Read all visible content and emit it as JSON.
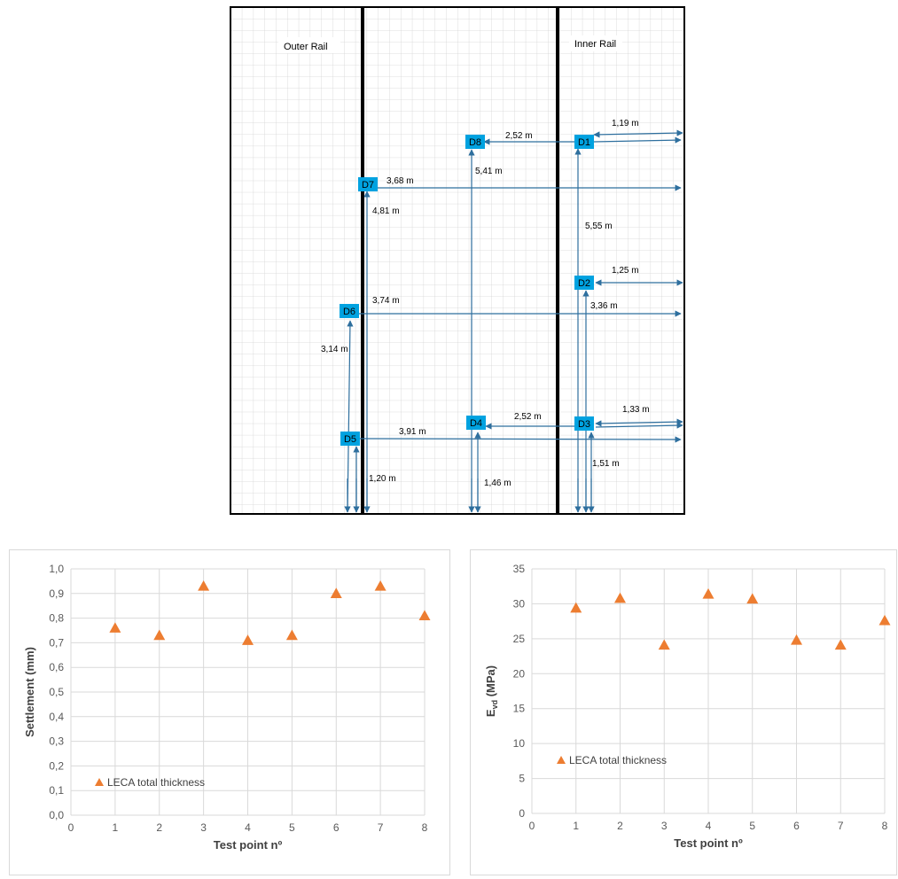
{
  "layout": {
    "rail_labels": {
      "outer": "Outer Rail",
      "inner": "Inner Rail"
    },
    "points": [
      {
        "id": "D1",
        "label": "D1"
      },
      {
        "id": "D2",
        "label": "D2"
      },
      {
        "id": "D3",
        "label": "D3"
      },
      {
        "id": "D4",
        "label": "D4"
      },
      {
        "id": "D5",
        "label": "D5"
      },
      {
        "id": "D6",
        "label": "D6"
      },
      {
        "id": "D7",
        "label": "D7"
      },
      {
        "id": "D8",
        "label": "D8"
      }
    ],
    "dimensions": [
      {
        "id": "d1-edge",
        "label": "1,19 m"
      },
      {
        "id": "d1-d8",
        "label": "2,52 m"
      },
      {
        "id": "d8-vertical",
        "label": "5,41 m"
      },
      {
        "id": "d7-horizontal",
        "label": "3,68 m"
      },
      {
        "id": "d7-vertical",
        "label": "4,81 m"
      },
      {
        "id": "d1-vertical",
        "label": "5,55 m"
      },
      {
        "id": "d2-edge",
        "label": "1,25 m"
      },
      {
        "id": "d6-horizontal",
        "label": "3,74 m"
      },
      {
        "id": "d2-vertical",
        "label": "3,36 m"
      },
      {
        "id": "d6-vertical",
        "label": "3,14 m"
      },
      {
        "id": "d3-edge",
        "label": "1,33 m"
      },
      {
        "id": "d3-d4",
        "label": "2,52 m"
      },
      {
        "id": "d5-horizontal",
        "label": "3,91 m"
      },
      {
        "id": "d3-vertical",
        "label": "1,51 m"
      },
      {
        "id": "d5-vertical",
        "label": "1,20 m"
      },
      {
        "id": "d4-vertical",
        "label": "1,46 m"
      }
    ]
  },
  "colors": {
    "marker": "#ed7d31",
    "box": "#00a2e0",
    "arrow": "#2e6f9e"
  },
  "chart_data": [
    {
      "type": "scatter",
      "title": "",
      "xlabel": "Test point nº",
      "ylabel": "Settlement (mm)",
      "xlim": [
        0,
        8
      ],
      "ylim": [
        0,
        1.0
      ],
      "xticks": [
        "0",
        "1",
        "2",
        "3",
        "4",
        "5",
        "6",
        "7",
        "8"
      ],
      "yticks": [
        "0,0",
        "0,1",
        "0,2",
        "0,3",
        "0,4",
        "0,5",
        "0,6",
        "0,7",
        "0,8",
        "0,9",
        "1,0"
      ],
      "grid": true,
      "legend_position": "bottom-left",
      "series": [
        {
          "name": "LECA total thickness",
          "marker": "triangle",
          "color": "#ed7d31",
          "x": [
            1,
            2,
            3,
            4,
            5,
            6,
            7,
            8
          ],
          "y": [
            0.76,
            0.73,
            0.93,
            0.71,
            0.73,
            0.9,
            0.93,
            0.81
          ]
        }
      ]
    },
    {
      "type": "scatter",
      "title": "",
      "xlabel": "Test point nº",
      "ylabel": {
        "main": "E",
        "sub": "vd",
        "rest": " (MPa)"
      },
      "xlim": [
        0,
        8
      ],
      "ylim": [
        0,
        35
      ],
      "xticks": [
        "0",
        "1",
        "2",
        "3",
        "4",
        "5",
        "6",
        "7",
        "8"
      ],
      "yticks": [
        "0",
        "5",
        "10",
        "15",
        "20",
        "25",
        "30",
        "35"
      ],
      "grid": true,
      "legend_position": "bottom-left",
      "series": [
        {
          "name": "LECA total thickness",
          "marker": "triangle",
          "color": "#ed7d31",
          "x": [
            1,
            2,
            3,
            4,
            5,
            6,
            7,
            8
          ],
          "y": [
            29.4,
            30.8,
            24.1,
            31.4,
            30.7,
            24.8,
            24.1,
            27.6
          ]
        }
      ]
    }
  ]
}
